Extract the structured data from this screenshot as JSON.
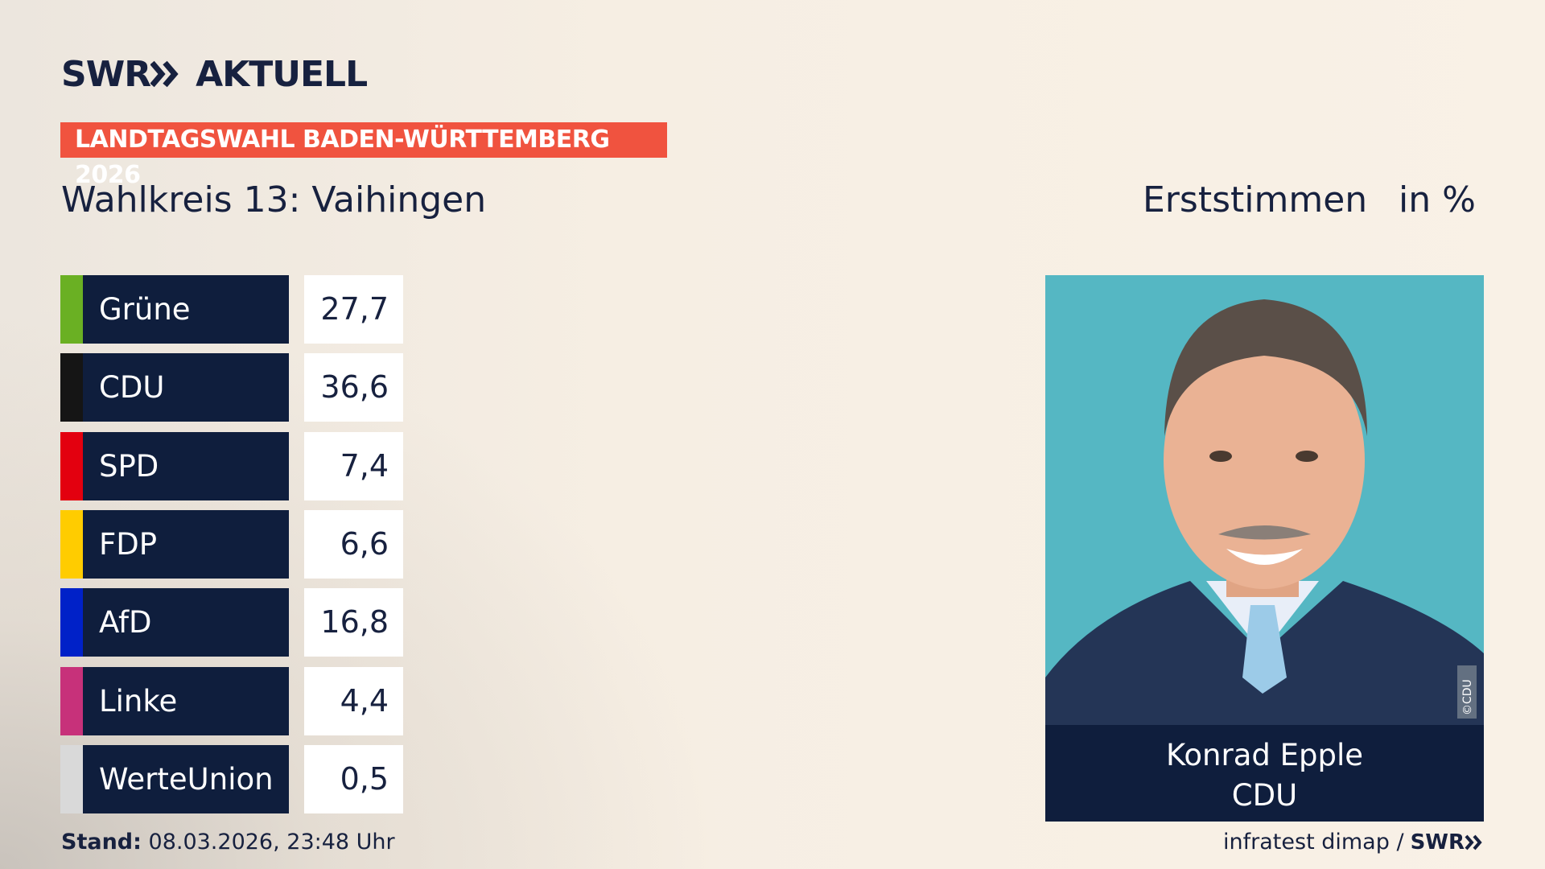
{
  "header": {
    "logo_left": "SWR",
    "logo_right": "AKTUELL",
    "banner": "LANDTAGSWAHL BADEN-WÜRTTEMBERG 2026",
    "district": "Wahlkreis 13: Vaihingen",
    "vote_type": "Erststimmen",
    "unit": "in %"
  },
  "table": {
    "rows": [
      {
        "party": "Grüne",
        "color": "#6ab023",
        "value": "27,7"
      },
      {
        "party": "CDU",
        "color": "#151515",
        "value": "36,6"
      },
      {
        "party": "SPD",
        "color": "#e3000f",
        "value": "7,4"
      },
      {
        "party": "FDP",
        "color": "#ffcc00",
        "value": "6,6"
      },
      {
        "party": "AfD",
        "color": "#0021c8",
        "value": "16,8"
      },
      {
        "party": "Linke",
        "color": "#c7317a",
        "value": "4,4"
      },
      {
        "party": "WerteUnion",
        "color": "#d9d9d9",
        "value": "0,5"
      }
    ]
  },
  "candidate": {
    "name": "Konrad Epple",
    "party": "CDU",
    "credit": "©CDU"
  },
  "footer": {
    "stand_label": "Stand:",
    "stand_value": "08.03.2026, 23:48 Uhr",
    "source": "infratest dimap /",
    "logo": "SWR"
  }
}
